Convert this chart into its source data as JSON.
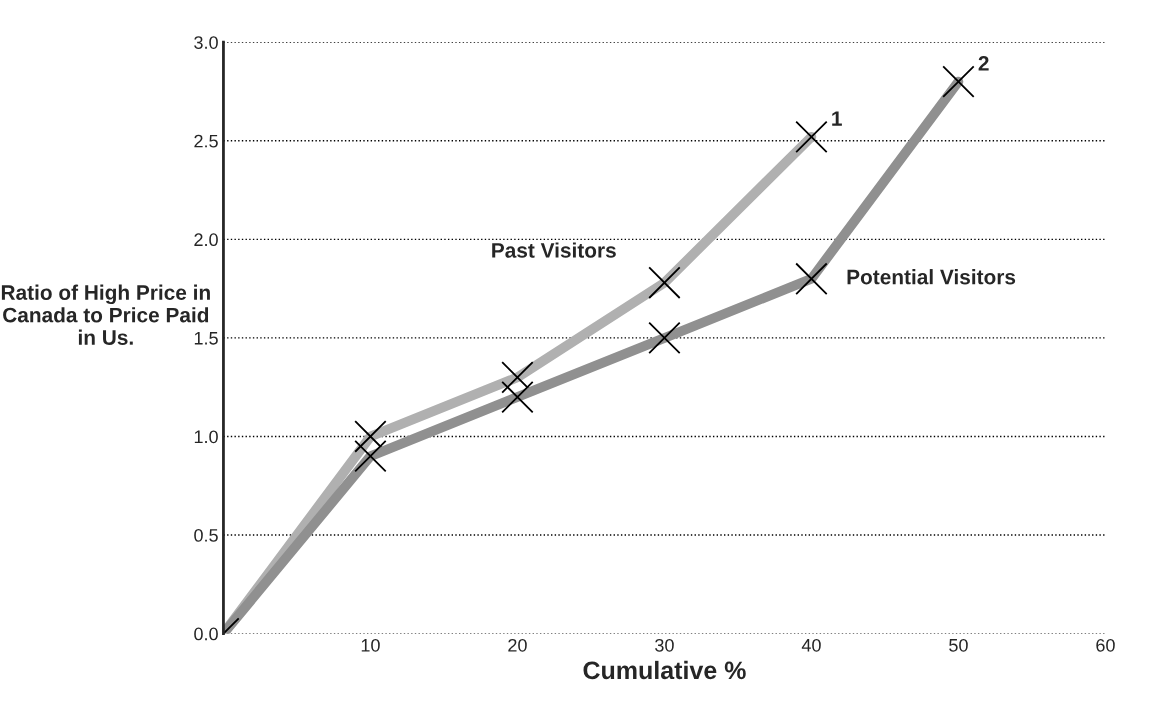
{
  "chart_data": {
    "type": "line",
    "xlabel": "Cumulative %",
    "ylabel": "Ratio of High Price in Canada to Price Paid in Us.",
    "xlim": [
      0,
      60
    ],
    "xticks": [
      10,
      20,
      30,
      40,
      50,
      60
    ],
    "ylim": [
      0,
      3
    ],
    "yticks": [
      {
        "value": 0,
        "label": "0.0"
      },
      0.5,
      {
        "value": 1,
        "label": "1.0"
      },
      1.5,
      {
        "value": 2,
        "label": "2.0"
      },
      2.5,
      {
        "value": 3,
        "label": "3.0"
      }
    ],
    "grid": "y",
    "legend": false,
    "marker": "cross",
    "line_style": "solid",
    "series": [
      {
        "name": "Past Visitors",
        "color": "#b0b0b0",
        "x": [
          0,
          10,
          20,
          30,
          40
        ],
        "values": [
          0,
          1.0,
          1.3,
          1.78,
          2.52
        ]
      },
      {
        "name": "Potential Visitors",
        "color": "#909090",
        "x": [
          0,
          10,
          20,
          30,
          40,
          50
        ],
        "values": [
          0,
          0.9,
          1.2,
          1.5,
          1.8,
          2.8
        ]
      }
    ],
    "annotations": [
      {
        "text": "1",
        "x": 40,
        "y": 2.52
      },
      {
        "text": "2",
        "x": 50,
        "y": 2.8
      }
    ]
  }
}
